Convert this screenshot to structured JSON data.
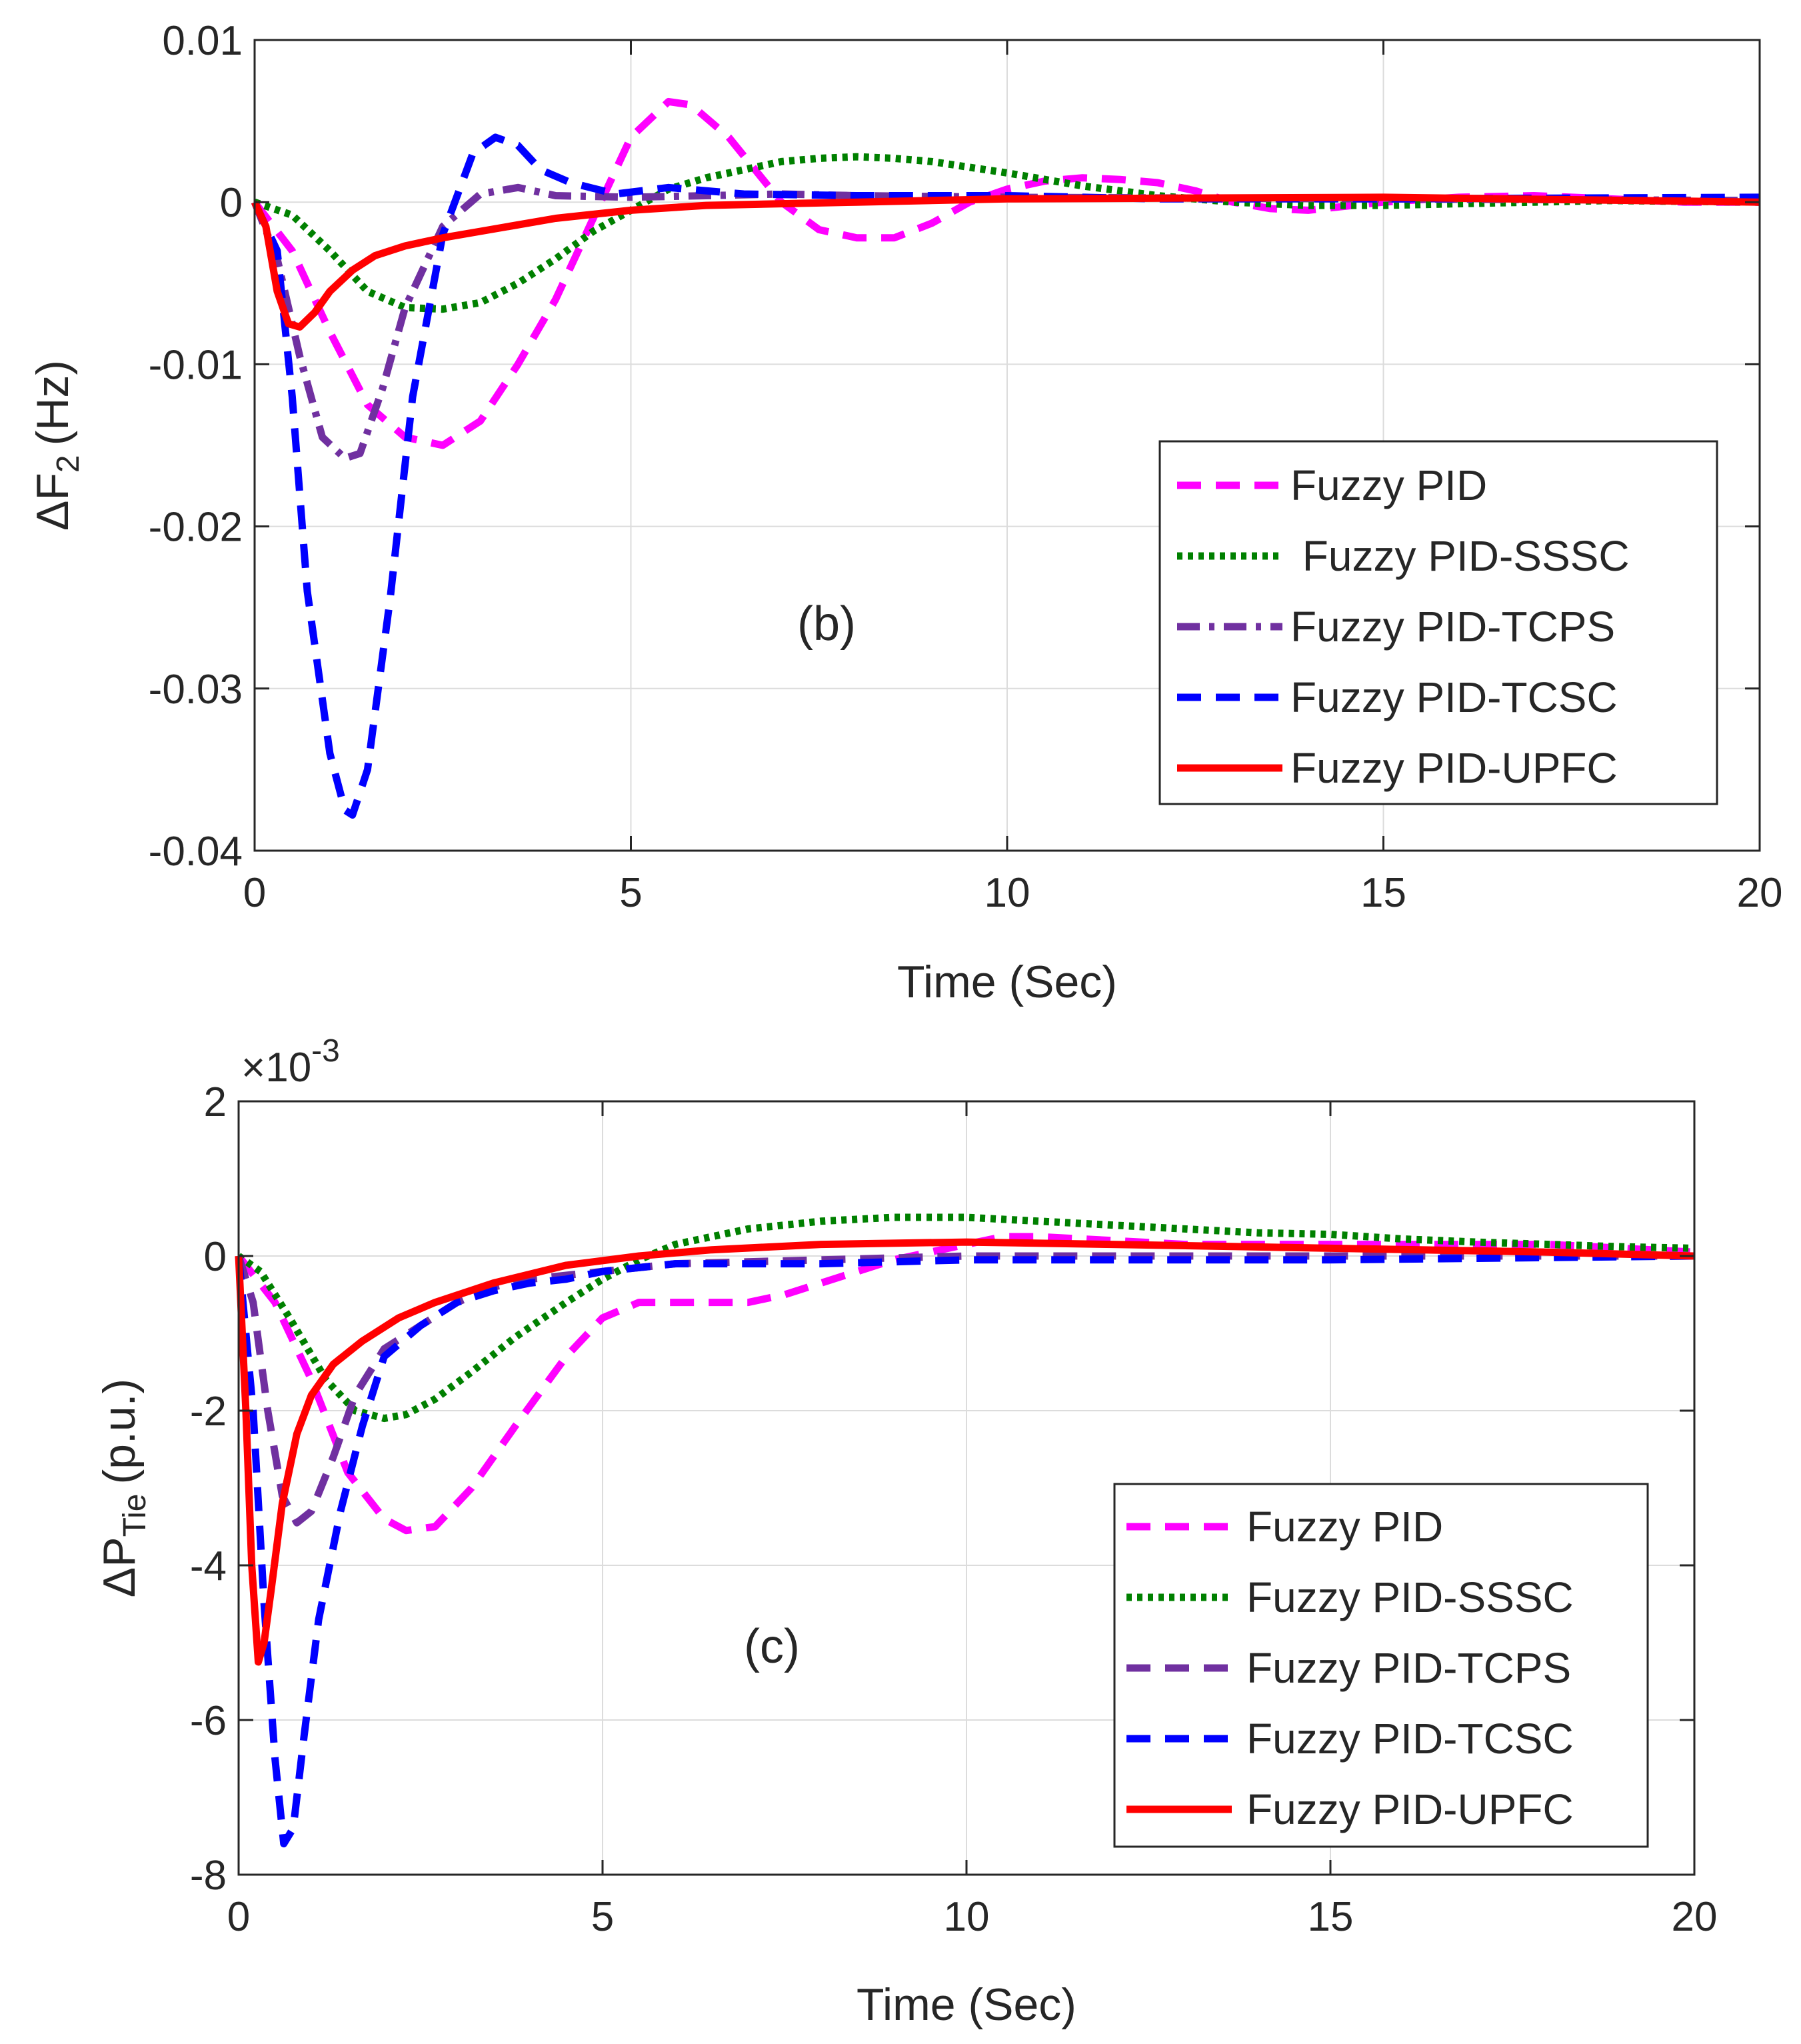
{
  "chart_data": [
    {
      "type": "line",
      "panel": "(b)",
      "xlabel": "Time (Sec)",
      "ylabel": "ΔF",
      "ylabel_sub": "2",
      "ylabel_unit": "(Hz)",
      "xlim": [
        0,
        20
      ],
      "ylim": [
        -0.04,
        0.01
      ],
      "xticks": [
        0,
        5,
        10,
        15,
        20
      ],
      "xtick_labels": [
        "0",
        "5",
        "10",
        "15",
        "20"
      ],
      "yticks": [
        -0.04,
        -0.03,
        -0.02,
        -0.01,
        0,
        0.01
      ],
      "ytick_labels": [
        "-0.04",
        "-0.03",
        "-0.02",
        "-0.01",
        "0",
        "0.01"
      ],
      "grid": true,
      "legend_position": "right",
      "legend_labels": [
        "Fuzzy PID",
        " Fuzzy PID-SSSC",
        "Fuzzy PID-TCPS",
        "Fuzzy PID-TCSC",
        "Fuzzy PID-UPFC"
      ],
      "series": [
        {
          "name": "Fuzzy PID",
          "color": "#ff00ff",
          "style": "dashed",
          "x": [
            0,
            0.5,
            1,
            1.5,
            2,
            2.5,
            3,
            3.5,
            4,
            4.5,
            5,
            5.5,
            5.8,
            6.3,
            7,
            7.5,
            8,
            8.5,
            9,
            9.5,
            10,
            10.5,
            11,
            11.5,
            12,
            12.5,
            13,
            13.5,
            14,
            15,
            16,
            17,
            18,
            19,
            20
          ],
          "y": [
            0,
            -0.003,
            -0.008,
            -0.0125,
            -0.0145,
            -0.015,
            -0.0135,
            -0.01,
            -0.006,
            -0.001,
            0.004,
            0.0062,
            0.006,
            0.004,
            0,
            -0.0017,
            -0.0022,
            -0.0022,
            -0.0013,
            0,
            0.0008,
            0.0013,
            0.0015,
            0.0014,
            0.0012,
            0.0007,
            0,
            -0.0004,
            -0.0005,
            0,
            0.0003,
            0.0004,
            0.0002,
            0,
            0
          ]
        },
        {
          "name": "Fuzzy PID-SSSC",
          "color": "#008000",
          "style": "dotted",
          "x": [
            0,
            0.5,
            1,
            1.5,
            2,
            2.5,
            3,
            3.5,
            4,
            4.5,
            5,
            5.5,
            6,
            6.5,
            7,
            7.5,
            8,
            8.5,
            9,
            10,
            11,
            12,
            13,
            14,
            15,
            16,
            17,
            18,
            20
          ],
          "y": [
            0,
            -0.0008,
            -0.003,
            -0.0055,
            -0.0065,
            -0.0066,
            -0.0062,
            -0.005,
            -0.0035,
            -0.0018,
            -0.0005,
            0.0008,
            0.0015,
            0.002,
            0.0025,
            0.0027,
            0.0028,
            0.0027,
            0.0025,
            0.0018,
            0.001,
            0.0004,
            0,
            -0.0002,
            -0.0002,
            -0.0001,
            0,
            0.0001,
            0
          ]
        },
        {
          "name": "Fuzzy PID-TCPS",
          "color": "#7030a0",
          "style": "dashdot",
          "x": [
            0,
            0.3,
            0.6,
            0.9,
            1.2,
            1.4,
            1.7,
            2,
            2.5,
            3,
            3.5,
            4,
            5,
            6,
            7,
            8,
            10,
            20
          ],
          "y": [
            0,
            -0.0035,
            -0.0095,
            -0.0145,
            -0.0158,
            -0.0155,
            -0.0115,
            -0.0065,
            -0.0015,
            0.0005,
            0.0009,
            0.0004,
            0.0003,
            0.0004,
            0.0005,
            0.0004,
            0.0003,
            0.0001
          ]
        },
        {
          "name": "Fuzzy PID-TCSC",
          "color": "#0000ff",
          "style": "dashed",
          "x": [
            0,
            0.3,
            0.5,
            0.7,
            1,
            1.2,
            1.3,
            1.5,
            1.8,
            2.1,
            2.5,
            2.9,
            3.2,
            3.5,
            3.8,
            4.2,
            4.8,
            5.5,
            6.5,
            8,
            10,
            12,
            15,
            20
          ],
          "y": [
            0,
            -0.003,
            -0.012,
            -0.024,
            -0.034,
            -0.0375,
            -0.0378,
            -0.035,
            -0.0245,
            -0.012,
            -0.002,
            0.003,
            0.004,
            0.0035,
            0.002,
            0.0012,
            0.0005,
            0.0009,
            0.0005,
            0.0004,
            0.0004,
            0.0002,
            0.0002,
            0.0003
          ]
        },
        {
          "name": "Fuzzy PID-UPFC",
          "color": "#ff0000",
          "style": "solid",
          "x": [
            0,
            0.15,
            0.3,
            0.45,
            0.6,
            0.8,
            1,
            1.3,
            1.6,
            2,
            2.5,
            3,
            4,
            5,
            6,
            8,
            10,
            15,
            20
          ],
          "y": [
            0,
            -0.0015,
            -0.0055,
            -0.0075,
            -0.0077,
            -0.0068,
            -0.0055,
            -0.0042,
            -0.0033,
            -0.0027,
            -0.0022,
            -0.0018,
            -0.001,
            -0.0005,
            -0.0002,
            0,
            0.0002,
            0.0003,
            0
          ]
        }
      ]
    },
    {
      "type": "line",
      "panel": "(c)",
      "xlabel": "Time (Sec)",
      "ylabel": "ΔP",
      "ylabel_sub": "Tie",
      "ylabel_unit": "(p.u.)",
      "exponent_label": "×10",
      "exponent_power": "-3",
      "xlim": [
        0,
        20
      ],
      "ylim": [
        -8,
        2
      ],
      "xticks": [
        0,
        5,
        10,
        15,
        20
      ],
      "xtick_labels": [
        "0",
        "5",
        "10",
        "15",
        "20"
      ],
      "yticks": [
        -8,
        -6,
        -4,
        -2,
        0,
        2
      ],
      "ytick_labels": [
        "-8",
        "-6",
        "-4",
        "-2",
        "0",
        "2"
      ],
      "grid": true,
      "legend_position": "right",
      "legend_labels": [
        "Fuzzy PID",
        "Fuzzy PID-SSSC",
        "Fuzzy PID-TCPS",
        "Fuzzy PID-TCSC",
        "Fuzzy PID-UPFC"
      ],
      "series": [
        {
          "name": "Fuzzy PID",
          "color": "#ff00ff",
          "style": "dashed",
          "x": [
            0,
            0.5,
            1,
            1.5,
            2,
            2.3,
            2.7,
            3.2,
            3.8,
            4.5,
            5,
            5.5,
            6,
            7,
            7.5,
            8,
            8.5,
            9,
            9.5,
            10,
            10.5,
            11,
            12,
            13,
            14,
            15,
            16,
            17,
            18,
            19,
            20
          ],
          "y": [
            0,
            -0.6,
            -1.6,
            -2.8,
            -3.4,
            -3.55,
            -3.5,
            -3.0,
            -2.2,
            -1.3,
            -0.8,
            -0.6,
            -0.6,
            -0.6,
            -0.5,
            -0.35,
            -0.2,
            -0.05,
            0.05,
            0.15,
            0.25,
            0.25,
            0.2,
            0.15,
            0.15,
            0.15,
            0.15,
            0.15,
            0.15,
            0.1,
            0.05
          ]
        },
        {
          "name": "Fuzzy PID-SSSC",
          "color": "#008000",
          "style": "dotted",
          "x": [
            0,
            0.3,
            0.7,
            1.2,
            1.6,
            2,
            2.3,
            2.7,
            3.2,
            3.8,
            4.5,
            5,
            5.5,
            6,
            7,
            8,
            9,
            10,
            11,
            12,
            13,
            14,
            15,
            16,
            17,
            18,
            19,
            20
          ],
          "y": [
            0,
            -0.2,
            -0.8,
            -1.6,
            -2.0,
            -2.1,
            -2.05,
            -1.85,
            -1.5,
            -1.05,
            -0.6,
            -0.3,
            -0.05,
            0.15,
            0.35,
            0.45,
            0.5,
            0.5,
            0.45,
            0.4,
            0.35,
            0.3,
            0.28,
            0.22,
            0.18,
            0.15,
            0.12,
            0.1
          ]
        },
        {
          "name": "Fuzzy PID-TCPS",
          "color": "#7030a0",
          "style": "dashed",
          "x": [
            0,
            0.2,
            0.4,
            0.6,
            0.8,
            1,
            1.3,
            1.6,
            2,
            2.5,
            3,
            3.5,
            4,
            4.5,
            5,
            5.5,
            6,
            8,
            10,
            12,
            15,
            20
          ],
          "y": [
            0,
            -0.6,
            -2.0,
            -3.1,
            -3.45,
            -3.3,
            -2.6,
            -1.8,
            -1.2,
            -0.9,
            -0.6,
            -0.4,
            -0.3,
            -0.25,
            -0.2,
            -0.15,
            -0.1,
            -0.05,
            0,
            0,
            0,
            0
          ]
        },
        {
          "name": "Fuzzy PID-TCSC",
          "color": "#0000ff",
          "style": "dashed",
          "x": [
            0,
            0.2,
            0.35,
            0.5,
            0.62,
            0.75,
            0.9,
            1.1,
            1.4,
            1.7,
            2,
            2.5,
            3,
            3.5,
            4,
            4.5,
            5,
            5.5,
            6,
            7,
            8,
            10,
            12,
            15,
            20
          ],
          "y": [
            0,
            -2.0,
            -4.5,
            -6.5,
            -7.6,
            -7.4,
            -6.2,
            -4.7,
            -3.3,
            -2.2,
            -1.3,
            -0.9,
            -0.6,
            -0.45,
            -0.35,
            -0.3,
            -0.2,
            -0.15,
            -0.1,
            -0.1,
            -0.1,
            -0.05,
            -0.05,
            -0.05,
            0
          ]
        },
        {
          "name": "Fuzzy PID-UPFC",
          "color": "#ff0000",
          "style": "solid",
          "x": [
            0,
            0.1,
            0.18,
            0.27,
            0.35,
            0.45,
            0.6,
            0.8,
            1,
            1.3,
            1.7,
            2.2,
            2.7,
            3.5,
            4.5,
            5.5,
            6.5,
            8,
            10,
            12,
            15,
            18,
            20
          ],
          "y": [
            0,
            -2.0,
            -4.0,
            -5.25,
            -5.0,
            -4.3,
            -3.2,
            -2.3,
            -1.8,
            -1.4,
            -1.1,
            -0.8,
            -0.6,
            -0.35,
            -0.12,
            0,
            0.08,
            0.15,
            0.18,
            0.15,
            0.1,
            0.05,
            0
          ]
        }
      ]
    }
  ]
}
